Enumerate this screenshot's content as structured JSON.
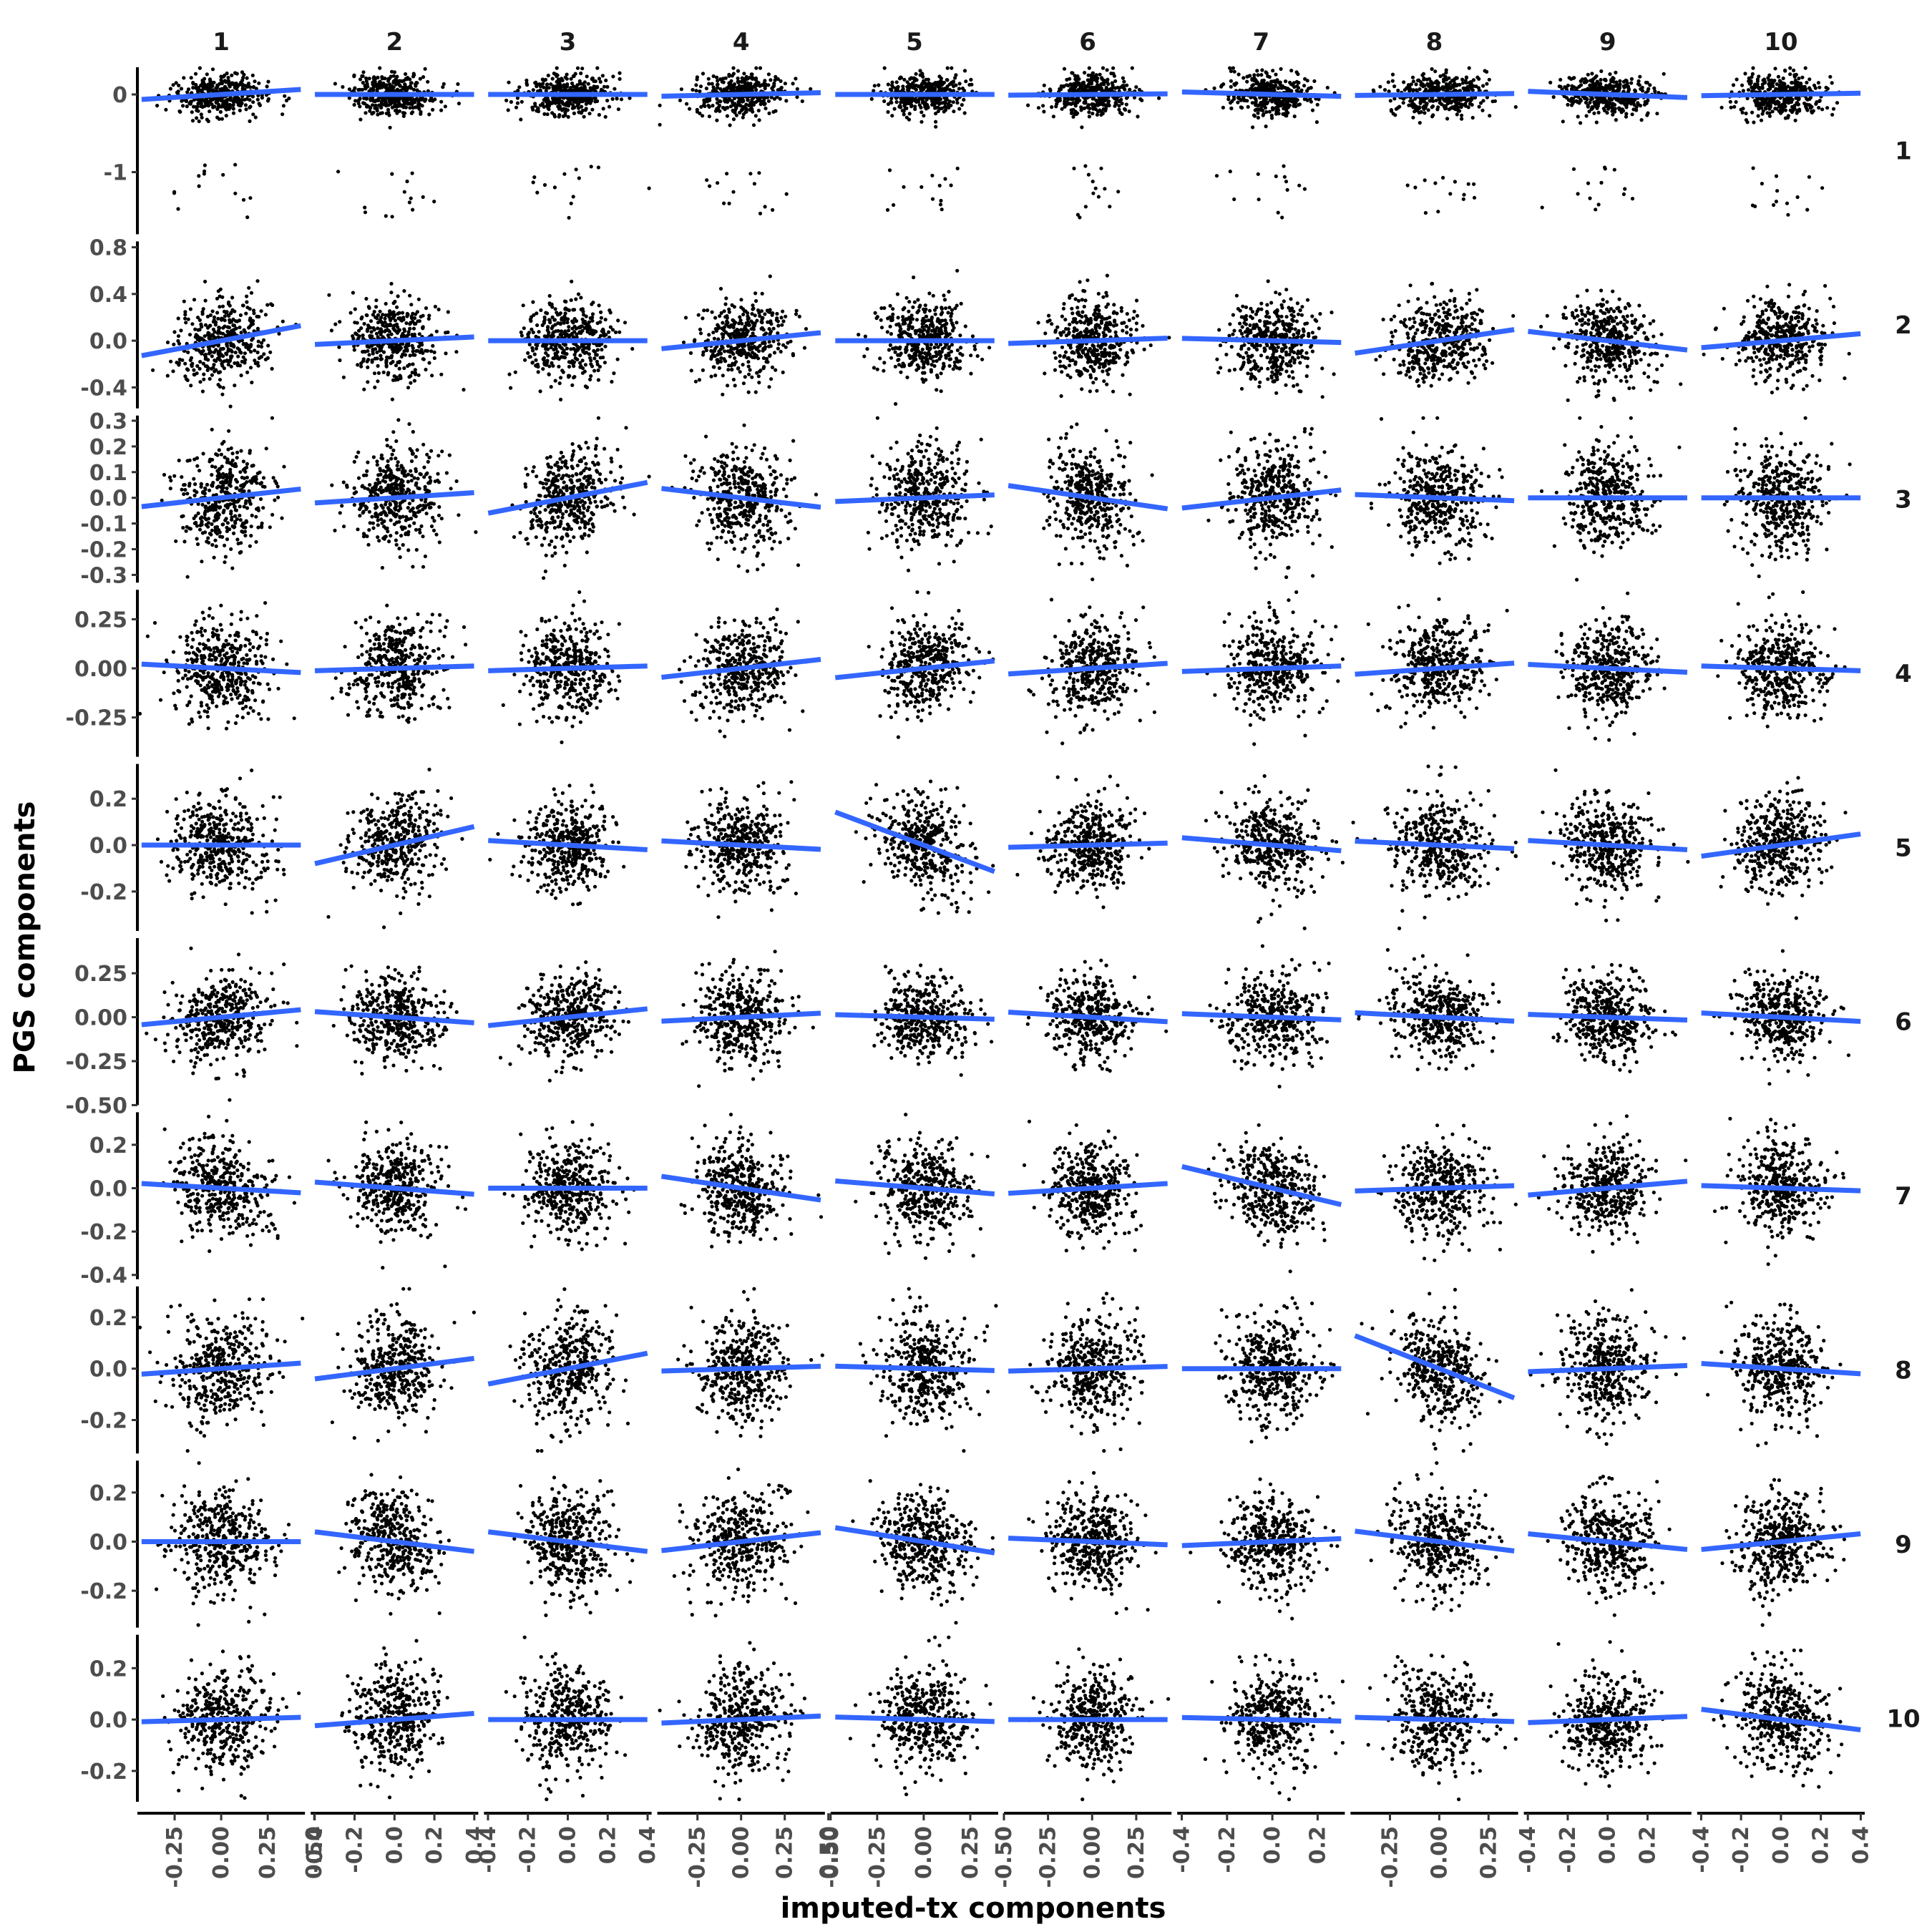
{
  "chart_data": {
    "type": "scatter",
    "layout": "facet-grid",
    "xlabel": "imputed-tx components",
    "ylabel": "PGS components",
    "column_strips": [
      "1",
      "2",
      "3",
      "4",
      "5",
      "6",
      "7",
      "8",
      "9",
      "10"
    ],
    "row_strips": [
      "1",
      "2",
      "3",
      "4",
      "5",
      "6",
      "7",
      "8",
      "9",
      "10"
    ],
    "point_color": "#000000",
    "fit_line_color": "#3366ff",
    "column_x_axes": [
      {
        "range": [
          -0.45,
          0.45
        ],
        "ticks": [
          -0.25,
          0.0,
          0.25,
          0.5
        ],
        "labels": [
          "-0.25",
          "0.00",
          "0.25",
          "0.50"
        ],
        "sd": 0.13
      },
      {
        "range": [
          -0.42,
          0.42
        ],
        "ticks": [
          -0.4,
          -0.2,
          0.0,
          0.2,
          0.4
        ],
        "labels": [
          "-0.4",
          "-0.2",
          "0.0",
          "0.2",
          "0.4"
        ],
        "sd": 0.11
      },
      {
        "range": [
          -0.42,
          0.42
        ],
        "ticks": [
          -0.4,
          -0.2,
          0.0,
          0.2,
          0.4
        ],
        "labels": [
          "-0.4",
          "-0.2",
          "0.0",
          "0.2",
          "0.4"
        ],
        "sd": 0.11
      },
      {
        "range": [
          -0.48,
          0.48
        ],
        "ticks": [
          -0.25,
          0.0,
          0.25,
          0.5
        ],
        "labels": [
          "-0.25",
          "0.00",
          "0.25",
          "0.50"
        ],
        "sd": 0.13
      },
      {
        "range": [
          -0.5,
          0.4
        ],
        "ticks": [
          -0.5,
          -0.25,
          0.0,
          0.25
        ],
        "labels": [
          "-0.50",
          "-0.25",
          "0.00",
          "0.25"
        ],
        "sd": 0.12
      },
      {
        "range": [
          -0.5,
          0.45
        ],
        "ticks": [
          -0.5,
          -0.25,
          0.0,
          0.25
        ],
        "labels": [
          "-0.50",
          "-0.25",
          "0.00",
          "0.25"
        ],
        "sd": 0.12
      },
      {
        "range": [
          -0.42,
          0.32
        ],
        "ticks": [
          -0.4,
          -0.2,
          0.0,
          0.2
        ],
        "labels": [
          "-0.4",
          "-0.2",
          "0.0",
          "0.2"
        ],
        "sd": 0.1
      },
      {
        "range": [
          -0.45,
          0.4
        ],
        "ticks": [
          -0.25,
          0.0,
          0.25
        ],
        "labels": [
          "-0.25",
          "0.00",
          "0.25"
        ],
        "sd": 0.12
      },
      {
        "range": [
          -0.42,
          0.42
        ],
        "ticks": [
          -0.4,
          -0.2,
          0.0,
          0.2
        ],
        "labels": [
          "-0.4",
          "-0.2",
          "0.0",
          "0.2"
        ],
        "sd": 0.11
      },
      {
        "range": [
          -0.42,
          0.42
        ],
        "ticks": [
          -0.4,
          -0.2,
          0.0,
          0.2,
          0.4
        ],
        "labels": [
          "-0.4",
          "-0.2",
          "0.0",
          "0.2",
          "0.4"
        ],
        "sd": 0.11
      }
    ],
    "row_y_axes": [
      {
        "range": [
          -1.8,
          0.35
        ],
        "ticks": [
          -1,
          0
        ],
        "labels": [
          "-1",
          "0"
        ],
        "sd": 0.13
      },
      {
        "range": [
          -0.58,
          0.85
        ],
        "ticks": [
          -0.4,
          0.0,
          0.4,
          0.8
        ],
        "labels": [
          "-0.4",
          "0.0",
          "0.4",
          "0.8"
        ],
        "sd": 0.17
      },
      {
        "range": [
          -0.33,
          0.32
        ],
        "ticks": [
          -0.3,
          -0.2,
          -0.1,
          0.0,
          0.1,
          0.2,
          0.3
        ],
        "labels": [
          "-0.3",
          "-0.2",
          "-0.1",
          "0.0",
          "0.1",
          "0.2",
          "0.3"
        ],
        "sd": 0.1
      },
      {
        "range": [
          -0.45,
          0.4
        ],
        "ticks": [
          -0.25,
          0.0,
          0.25
        ],
        "labels": [
          "-0.25",
          "0.00",
          "0.25"
        ],
        "sd": 0.12
      },
      {
        "range": [
          -0.37,
          0.35
        ],
        "ticks": [
          -0.2,
          0.0,
          0.2
        ],
        "labels": [
          "-0.2",
          "0.0",
          "0.2"
        ],
        "sd": 0.1
      },
      {
        "range": [
          -0.5,
          0.45
        ],
        "ticks": [
          -0.5,
          -0.25,
          0.0,
          0.25
        ],
        "labels": [
          "-0.50",
          "-0.25",
          "0.00",
          "0.25"
        ],
        "sd": 0.12
      },
      {
        "range": [
          -0.42,
          0.35
        ],
        "ticks": [
          -0.4,
          -0.2,
          0.0,
          0.2
        ],
        "labels": [
          "-0.4",
          "-0.2",
          "0.0",
          "0.2"
        ],
        "sd": 0.11
      },
      {
        "range": [
          -0.33,
          0.32
        ],
        "ticks": [
          -0.2,
          0.0,
          0.2
        ],
        "labels": [
          "-0.2",
          "0.0",
          "0.2"
        ],
        "sd": 0.1
      },
      {
        "range": [
          -0.35,
          0.33
        ],
        "ticks": [
          -0.2,
          0.0,
          0.2
        ],
        "labels": [
          "-0.2",
          "0.0",
          "0.2"
        ],
        "sd": 0.1
      },
      {
        "range": [
          -0.32,
          0.33
        ],
        "ticks": [
          -0.2,
          0.0,
          0.2
        ],
        "labels": [
          "-0.2",
          "0.0",
          "0.2"
        ],
        "sd": 0.1
      }
    ],
    "fit_slopes": [
      [
        0.15,
        0.0,
        0.0,
        0.05,
        0.0,
        0.02,
        -0.08,
        0.03,
        -0.1,
        0.04
      ],
      [
        0.3,
        0.08,
        0.0,
        0.15,
        0.0,
        0.05,
        -0.05,
        0.25,
        -0.2,
        0.15
      ],
      [
        0.08,
        0.05,
        0.15,
        -0.08,
        0.03,
        -0.1,
        0.1,
        -0.03,
        0.0,
        0.0
      ],
      [
        -0.05,
        0.03,
        0.03,
        0.1,
        0.1,
        0.06,
        0.04,
        0.07,
        -0.05,
        -0.03
      ],
      [
        0.0,
        0.2,
        -0.05,
        -0.04,
        -0.3,
        0.02,
        -0.08,
        -0.04,
        -0.05,
        0.12
      ],
      [
        0.1,
        -0.08,
        0.12,
        0.05,
        -0.03,
        -0.06,
        -0.05,
        -0.06,
        -0.04,
        -0.06
      ],
      [
        -0.05,
        -0.07,
        0.0,
        -0.12,
        -0.07,
        0.05,
        -0.25,
        0.03,
        0.08,
        -0.03
      ],
      [
        0.05,
        0.1,
        0.15,
        0.02,
        -0.02,
        0.02,
        0.0,
        -0.3,
        0.03,
        -0.05
      ],
      [
        0.0,
        -0.1,
        -0.1,
        0.08,
        -0.12,
        -0.03,
        0.04,
        -0.1,
        -0.08,
        0.08
      ],
      [
        0.02,
        0.06,
        0.0,
        0.03,
        -0.02,
        0.0,
        -0.02,
        -0.02,
        0.03,
        -0.1
      ]
    ],
    "row1_outliers": "a small group of points per panel near y = -1 to -1.6",
    "points_per_panel": 400
  }
}
